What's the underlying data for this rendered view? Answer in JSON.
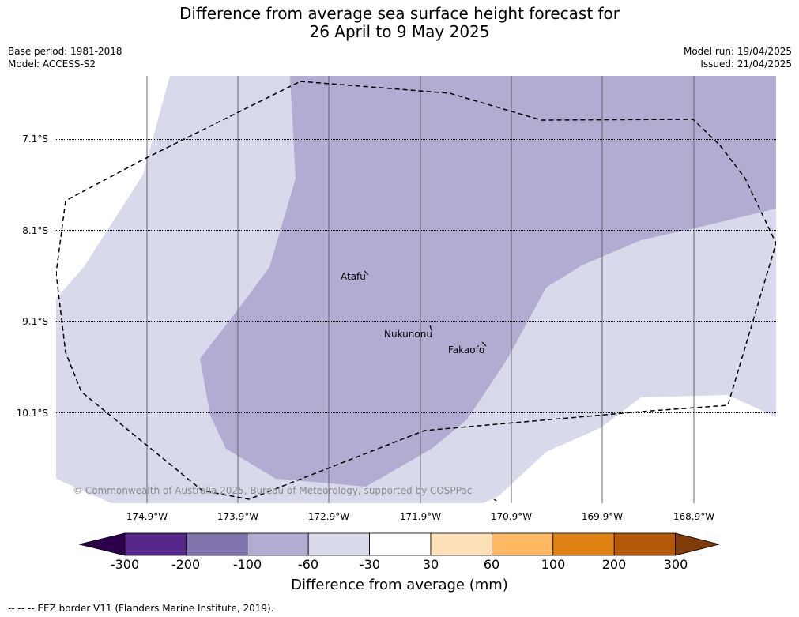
{
  "title_line1": "Difference from average sea surface height forecast for",
  "title_line2": "26 April to 9 May 2025",
  "base_period": "Base period: 1981-2018",
  "model": "Model: ACCESS-S2",
  "model_run": "Model run: 19/04/2025",
  "issued": "Issued: 21/04/2025",
  "lat_labels": [
    "7.1°S",
    "8.1°S",
    "9.1°S",
    "10.1°S"
  ],
  "lon_labels": [
    "174.9°W",
    "173.9°W",
    "172.9°W",
    "171.9°W",
    "170.9°W",
    "169.9°W",
    "168.9°W"
  ],
  "places": [
    "Atafu",
    "Nukunonu",
    "Fakaofo"
  ],
  "copyright": "© Commonwealth of Australia 2025, Bureau of Meteorology, supported by COSPPac",
  "colorbar": {
    "ticks": [
      "-300",
      "-200",
      "-100",
      "-60",
      "-30",
      "30",
      "60",
      "100",
      "200",
      "300"
    ],
    "colors": [
      "#2d004b",
      "#542788",
      "#8073ac",
      "#b2abd2",
      "#d8daeb",
      "#ffffff",
      "#fee0b6",
      "#fdb863",
      "#e08214",
      "#b35806",
      "#7f3b08"
    ],
    "label": "Difference from average (mm)"
  },
  "map_colors": {
    "light_purple": "#d8daeb",
    "mid_purple": "#b2abd2",
    "background": "#ffffff"
  },
  "footer": "--  --  -- EEZ border V11 (Flanders Marine Institute, 2019)."
}
